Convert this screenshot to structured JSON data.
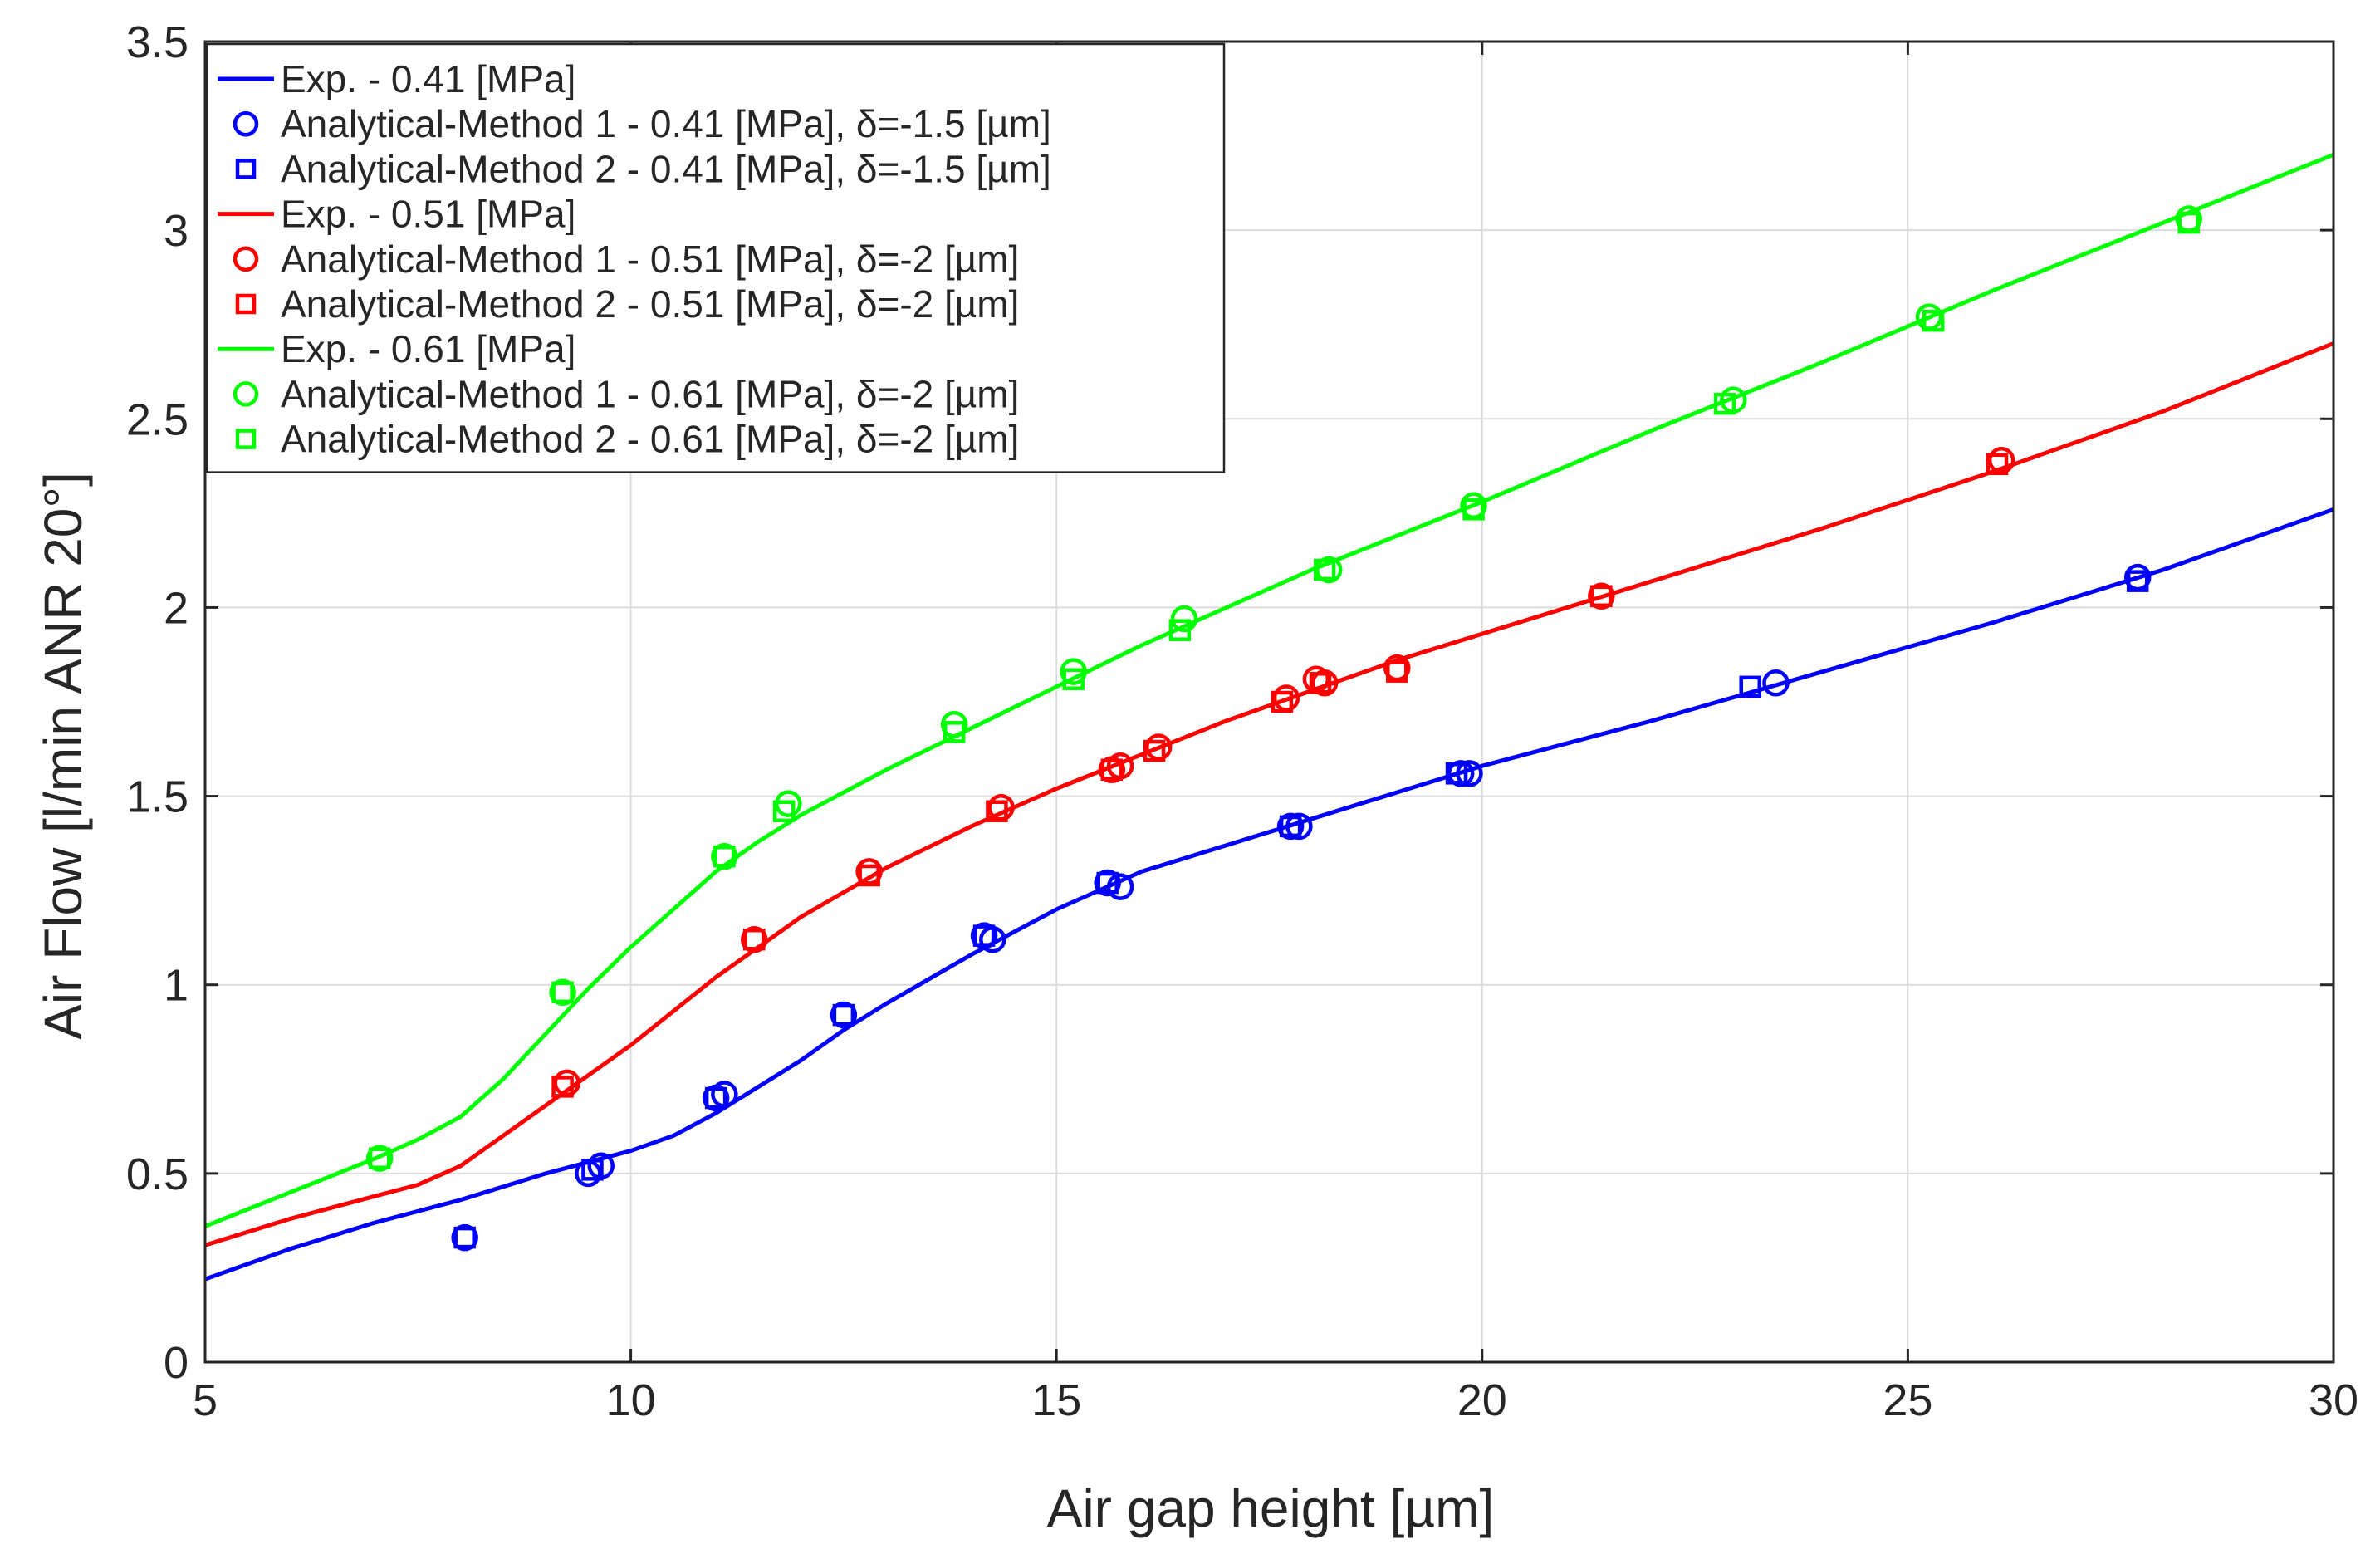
{
  "chart_data": {
    "type": "line",
    "xlabel": "Air gap height [µm]",
    "ylabel": "Air Flow [l/min ANR 20°]",
    "xlim": [
      5,
      30
    ],
    "ylim": [
      0,
      3.5
    ],
    "xticks": [
      5,
      10,
      15,
      20,
      25,
      30
    ],
    "yticks": [
      0,
      0.5,
      1,
      1.5,
      2,
      2.5,
      3,
      3.5
    ],
    "x_tick_labels": [
      "5",
      "10",
      "15",
      "20",
      "25",
      "30"
    ],
    "y_tick_labels": [
      "0",
      "0.5",
      "1",
      "1.5",
      "2",
      "2.5",
      "3",
      "3.5"
    ],
    "grid": true,
    "legend_position": "top-left",
    "series": [
      {
        "name": "Exp. - 0.41 [MPa]",
        "color": "#0000ff",
        "style": "line",
        "x": [
          5,
          6,
          7,
          8,
          9,
          10,
          10.5,
          11,
          11.5,
          12,
          12.5,
          13,
          14,
          15,
          16,
          17,
          18,
          19,
          20,
          22,
          24,
          26,
          28,
          30
        ],
        "y": [
          0.22,
          0.3,
          0.37,
          0.43,
          0.5,
          0.56,
          0.6,
          0.66,
          0.73,
          0.8,
          0.88,
          0.95,
          1.08,
          1.2,
          1.3,
          1.37,
          1.44,
          1.51,
          1.58,
          1.7,
          1.83,
          1.96,
          2.1,
          2.26
        ]
      },
      {
        "name": "Analytical-Method 1 - 0.41 [MPa], δ=-1.5 [µm]",
        "color": "#0000ff",
        "style": "circle",
        "x": [
          8.05,
          9.5,
          9.65,
          11.0,
          11.1,
          12.5,
          14.15,
          14.25,
          15.6,
          15.75,
          17.75,
          17.85,
          19.75,
          19.85,
          23.45,
          27.7
        ],
        "y": [
          0.33,
          0.5,
          0.52,
          0.7,
          0.71,
          0.92,
          1.13,
          1.12,
          1.27,
          1.26,
          1.42,
          1.42,
          1.56,
          1.56,
          1.8,
          2.08
        ]
      },
      {
        "name": "Analytical-Method 2 - 0.41 [MPa], δ=-1.5 [µm]",
        "color": "#0000ff",
        "style": "square",
        "x": [
          8.05,
          9.55,
          11.0,
          12.5,
          14.15,
          15.6,
          17.75,
          19.7,
          23.15,
          27.7
        ],
        "y": [
          0.33,
          0.51,
          0.7,
          0.92,
          1.13,
          1.27,
          1.42,
          1.56,
          1.79,
          2.07
        ]
      },
      {
        "name": "Exp. - 0.51 [MPa]",
        "color": "#ff0000",
        "style": "line",
        "x": [
          5,
          6,
          7,
          7.5,
          8,
          9,
          10,
          10.5,
          11,
          11.5,
          12,
          13,
          14,
          15,
          16,
          17,
          18,
          19,
          20,
          22,
          24,
          26,
          28,
          30
        ],
        "y": [
          0.31,
          0.38,
          0.44,
          0.47,
          0.52,
          0.68,
          0.84,
          0.93,
          1.02,
          1.1,
          1.18,
          1.31,
          1.42,
          1.52,
          1.61,
          1.7,
          1.78,
          1.86,
          1.93,
          2.07,
          2.21,
          2.36,
          2.52,
          2.7
        ]
      },
      {
        "name": "Analytical-Method 1 - 0.51 [MPa], δ=-2 [µm]",
        "color": "#ff0000",
        "style": "circle",
        "x": [
          9.25,
          11.45,
          12.8,
          14.35,
          15.65,
          15.75,
          16.2,
          17.7,
          18.05,
          18.15,
          19.0,
          21.4,
          26.1
        ],
        "y": [
          0.74,
          1.12,
          1.3,
          1.47,
          1.57,
          1.58,
          1.63,
          1.76,
          1.81,
          1.8,
          1.84,
          2.03,
          2.39
        ]
      },
      {
        "name": "Analytical-Method 2 - 0.51 [MPa], δ=-2 [µm]",
        "color": "#ff0000",
        "style": "square",
        "x": [
          9.2,
          11.45,
          12.8,
          14.3,
          15.65,
          16.15,
          17.65,
          18.1,
          19.0,
          21.4,
          26.05
        ],
        "y": [
          0.73,
          1.12,
          1.29,
          1.46,
          1.57,
          1.62,
          1.75,
          1.8,
          1.83,
          2.03,
          2.38
        ]
      },
      {
        "name": "Exp. - 0.61 [MPa]",
        "color": "#00ff00",
        "style": "line",
        "x": [
          5,
          6,
          7,
          7.5,
          8,
          8.5,
          9,
          9.5,
          10,
          10.5,
          11,
          11.5,
          12,
          13,
          14,
          15,
          16,
          17,
          18,
          19,
          20,
          22,
          24,
          26,
          28,
          30
        ],
        "y": [
          0.36,
          0.45,
          0.54,
          0.59,
          0.65,
          0.75,
          0.87,
          0.99,
          1.1,
          1.2,
          1.3,
          1.38,
          1.45,
          1.57,
          1.68,
          1.79,
          1.9,
          2.0,
          2.1,
          2.19,
          2.28,
          2.47,
          2.65,
          2.84,
          3.02,
          3.2
        ]
      },
      {
        "name": "Analytical-Method 1 - 0.61 [MPa], δ=-2 [µm]",
        "color": "#00ff00",
        "style": "circle",
        "x": [
          7.05,
          9.2,
          11.1,
          11.85,
          13.8,
          15.2,
          16.5,
          18.2,
          19.9,
          22.95,
          25.25,
          28.3
        ],
        "y": [
          0.54,
          0.98,
          1.34,
          1.48,
          1.69,
          1.83,
          1.97,
          2.1,
          2.27,
          2.55,
          2.77,
          3.03
        ]
      },
      {
        "name": "Analytical-Method 2 - 0.61 [MPa], δ=-2 [µm]",
        "color": "#00ff00",
        "style": "square",
        "x": [
          7.05,
          9.2,
          11.1,
          11.8,
          13.8,
          15.2,
          16.45,
          18.15,
          19.9,
          22.85,
          25.3,
          28.3
        ],
        "y": [
          0.54,
          0.98,
          1.34,
          1.46,
          1.67,
          1.81,
          1.94,
          2.1,
          2.26,
          2.54,
          2.76,
          3.02
        ]
      }
    ],
    "legend": [
      {
        "style": "line",
        "color": "#0000ff",
        "label": "Exp. - 0.41 [MPa]"
      },
      {
        "style": "circle",
        "color": "#0000ff",
        "label": "Analytical-Method 1 - 0.41 [MPa], δ=-1.5 [µm]"
      },
      {
        "style": "square",
        "color": "#0000ff",
        "label": "Analytical-Method 2 - 0.41 [MPa], δ=-1.5 [µm]"
      },
      {
        "style": "line",
        "color": "#ff0000",
        "label": "Exp. - 0.51 [MPa]"
      },
      {
        "style": "circle",
        "color": "#ff0000",
        "label": "Analytical-Method 1 - 0.51 [MPa], δ=-2 [µm]"
      },
      {
        "style": "square",
        "color": "#ff0000",
        "label": "Analytical-Method 2 - 0.51 [MPa], δ=-2 [µm]"
      },
      {
        "style": "line",
        "color": "#00ff00",
        "label": "Exp. - 0.61 [MPa]"
      },
      {
        "style": "circle",
        "color": "#00ff00",
        "label": "Analytical-Method 1 - 0.61 [MPa], δ=-2 [µm]"
      },
      {
        "style": "square",
        "color": "#00ff00",
        "label": "Analytical-Method 2 - 0.61 [MPa], δ=-2 [µm]"
      }
    ]
  }
}
